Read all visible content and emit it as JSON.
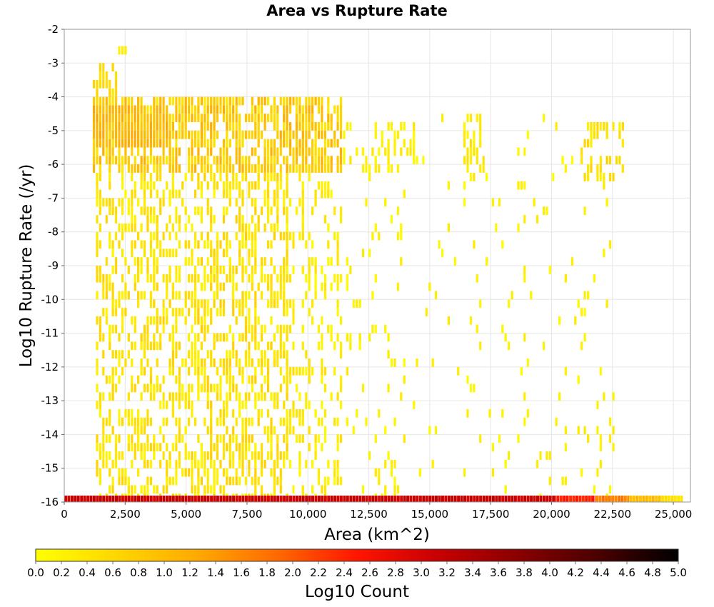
{
  "chart_data": {
    "type": "heatmap",
    "title": "Area vs Rupture Rate",
    "xlabel": "Area (km^2)",
    "ylabel": "Log10 Rupture Rate (/yr)",
    "xlim": [
      0,
      25700
    ],
    "ylim": [
      -16,
      -2
    ],
    "x_ticks": [
      "0",
      "2,500",
      "5,000",
      "7,500",
      "10,000",
      "12,500",
      "15,000",
      "17,500",
      "20,000",
      "22,500",
      "25,000"
    ],
    "x_tick_values": [
      0,
      2500,
      5000,
      7500,
      10000,
      12500,
      15000,
      17500,
      20000,
      22500,
      25000
    ],
    "y_ticks": [
      "-2",
      "-3",
      "-4",
      "-5",
      "-6",
      "-7",
      "-8",
      "-9",
      "-10",
      "-11",
      "-12",
      "-13",
      "-14",
      "-15",
      "-16"
    ],
    "y_tick_values": [
      -2,
      -3,
      -4,
      -5,
      -6,
      -7,
      -8,
      -9,
      -10,
      -11,
      -12,
      -13,
      -14,
      -15,
      -16
    ],
    "grid": true,
    "colorbar": {
      "label": "Log10 Count",
      "range": [
        0,
        5
      ],
      "ticks": [
        "0.0",
        "0.2",
        "0.4",
        "0.6",
        "0.8",
        "1.0",
        "1.2",
        "1.4",
        "1.6",
        "1.8",
        "2.0",
        "2.2",
        "2.4",
        "2.6",
        "2.8",
        "3.0",
        "3.2",
        "3.4",
        "3.6",
        "3.8",
        "4.0",
        "4.2",
        "4.4",
        "4.6",
        "4.8",
        "5.0"
      ],
      "colors": [
        "#ffff00",
        "#ffd700",
        "#ffaa00",
        "#ff6a00",
        "#ff1500",
        "#c80000",
        "#8a0000",
        "#4a0000",
        "#000000"
      ]
    },
    "bin_size": {
      "area_km2": 130,
      "log10_rate": 0.25
    },
    "regions": [
      {
        "area_min": 1200,
        "area_max": 11400,
        "rate_min": -6.25,
        "rate_max": -4.0,
        "density": 0.72,
        "value_low": 0.3,
        "value_high": 1.2
      },
      {
        "area_min": 1200,
        "area_max": 4200,
        "rate_min": -5.5,
        "rate_max": -4.25,
        "density": 0.9,
        "value_low": 0.8,
        "value_high": 1.3
      },
      {
        "area_min": 1300,
        "area_max": 5200,
        "rate_min": -16.0,
        "rate_max": -6.25,
        "density": 0.42,
        "value_low": 0.1,
        "value_high": 0.7
      },
      {
        "area_min": 5200,
        "area_max": 9200,
        "rate_min": -16.0,
        "rate_max": -6.25,
        "density": 0.52,
        "value_low": 0.1,
        "value_high": 0.75
      },
      {
        "area_min": 9200,
        "area_max": 11400,
        "rate_min": -16.0,
        "rate_max": -6.25,
        "density": 0.28,
        "value_low": 0.05,
        "value_high": 0.5
      },
      {
        "area_min": 11400,
        "area_max": 14400,
        "rate_min": -6.25,
        "rate_max": -4.75,
        "density": 0.28,
        "value_low": 0.05,
        "value_high": 0.4
      },
      {
        "area_min": 11600,
        "area_max": 14000,
        "rate_min": -16.0,
        "rate_max": -6.25,
        "density": 0.1,
        "value_low": 0.05,
        "value_high": 0.35
      },
      {
        "area_min": 14000,
        "area_max": 19000,
        "rate_min": -16.0,
        "rate_max": -4.5,
        "density": 0.045,
        "value_low": 0.05,
        "value_high": 0.35
      },
      {
        "area_min": 16400,
        "area_max": 17200,
        "rate_min": -6.5,
        "rate_max": -4.5,
        "density": 0.3,
        "value_low": 0.1,
        "value_high": 0.5
      },
      {
        "area_min": 19000,
        "area_max": 21300,
        "rate_min": -16.0,
        "rate_max": -4.5,
        "density": 0.05,
        "value_low": 0.05,
        "value_high": 0.35
      },
      {
        "area_min": 21300,
        "area_max": 22900,
        "rate_min": -6.5,
        "rate_max": -4.75,
        "density": 0.45,
        "value_low": 0.2,
        "value_high": 0.75
      },
      {
        "area_min": 21300,
        "area_max": 22700,
        "rate_min": -16.0,
        "rate_max": -6.5,
        "density": 0.07,
        "value_low": 0.05,
        "value_high": 0.35
      },
      {
        "area_min": 1200,
        "area_max": 1400,
        "rate_min": -4.5,
        "rate_max": -3.5,
        "density": 0.6,
        "value_low": 0.4,
        "value_high": 0.8
      },
      {
        "area_min": 1500,
        "area_max": 2100,
        "rate_min": -4.25,
        "rate_max": -3.0,
        "density": 0.5,
        "value_low": 0.3,
        "value_high": 0.7
      },
      {
        "area_min": 2300,
        "area_max": 2500,
        "rate_min": -2.75,
        "rate_max": -2.5,
        "density": 1.0,
        "value_low": 0.2,
        "value_high": 0.3
      }
    ],
    "floor_row": {
      "log10_rate": -16,
      "segments": [
        {
          "area_min": 0,
          "area_max": 20200,
          "value": 3.1
        },
        {
          "area_min": 20200,
          "area_max": 21800,
          "value": 2.4
        },
        {
          "area_min": 21800,
          "area_max": 23200,
          "value": 1.7
        },
        {
          "area_min": 23200,
          "area_max": 24500,
          "value": 1.0
        },
        {
          "area_min": 24500,
          "area_max": 25400,
          "value": 0.5
        }
      ]
    }
  }
}
